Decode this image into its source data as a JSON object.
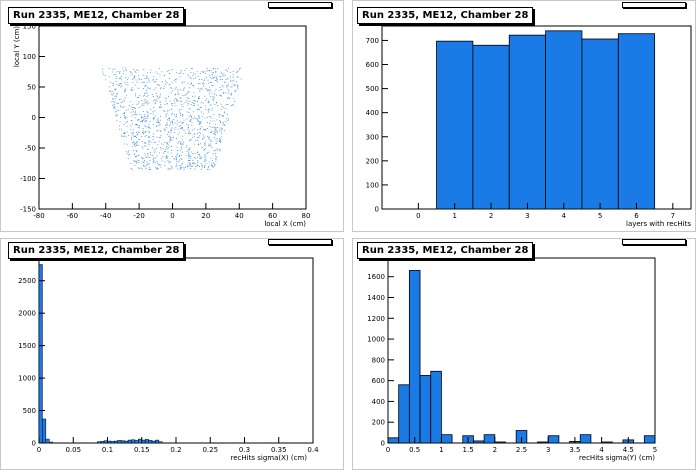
{
  "chart_data": [
    {
      "type": "scatter",
      "title": "Run 2335, ME12, Chamber 28",
      "xlabel": "local X (cm)",
      "ylabel": "local Y (cm)",
      "xlim": [
        -80,
        80
      ],
      "ylim": [
        -150,
        150
      ],
      "xticks": [
        -80,
        -60,
        -40,
        -20,
        0,
        20,
        40,
        60,
        80
      ],
      "yticks": [
        -150,
        -100,
        -50,
        0,
        50,
        100,
        150
      ],
      "region": {
        "y_top": 82,
        "y_bottom": -85,
        "x_top_half_width": 43,
        "x_bottom_half_width": 25,
        "x_center": 0
      },
      "color": "#3f8fd6"
    },
    {
      "type": "bar",
      "title": "Run 2335, ME12, Chamber 28",
      "xlabel": "layers with recHits",
      "ylabel": "",
      "xlim": [
        -1,
        7.5
      ],
      "ylim": [
        0,
        760
      ],
      "xticks": [
        0,
        1,
        2,
        3,
        4,
        5,
        6,
        7
      ],
      "yticks": [
        0,
        100,
        200,
        300,
        400,
        500,
        600,
        700
      ],
      "bin_edges": [
        0.5,
        1.5,
        2.5,
        3.5,
        4.5,
        5.5,
        6.5
      ],
      "values": [
        697,
        680,
        722,
        740,
        706,
        728
      ],
      "color": "#1a7ae6"
    },
    {
      "type": "bar",
      "title": "Run 2335, ME12, Chamber 28",
      "xlabel": "recHits sigma(X) (cm)",
      "ylabel": "",
      "xlim": [
        0,
        0.4
      ],
      "ylim": [
        0,
        2850
      ],
      "xticks": [
        0,
        0.05,
        0.1,
        0.15,
        0.2,
        0.25,
        0.3,
        0.35,
        0.4
      ],
      "xtick_labels": [
        "0",
        "0.05",
        "0.1",
        "0.15",
        "0.2",
        "0.25",
        "0.3",
        "0.35",
        "0.4"
      ],
      "yticks": [
        0,
        500,
        1000,
        1500,
        2000,
        2500
      ],
      "bin_width": 0.005,
      "bins": [
        {
          "x": 0.0,
          "v": 2750
        },
        {
          "x": 0.005,
          "v": 370
        },
        {
          "x": 0.01,
          "v": 60
        },
        {
          "x": 0.015,
          "v": 15
        },
        {
          "x": 0.085,
          "v": 20
        },
        {
          "x": 0.09,
          "v": 25
        },
        {
          "x": 0.095,
          "v": 35
        },
        {
          "x": 0.1,
          "v": 30
        },
        {
          "x": 0.105,
          "v": 25
        },
        {
          "x": 0.11,
          "v": 30
        },
        {
          "x": 0.115,
          "v": 40
        },
        {
          "x": 0.12,
          "v": 35
        },
        {
          "x": 0.125,
          "v": 30
        },
        {
          "x": 0.13,
          "v": 45
        },
        {
          "x": 0.135,
          "v": 50
        },
        {
          "x": 0.14,
          "v": 40
        },
        {
          "x": 0.145,
          "v": 60
        },
        {
          "x": 0.15,
          "v": 45
        },
        {
          "x": 0.155,
          "v": 55
        },
        {
          "x": 0.16,
          "v": 40
        },
        {
          "x": 0.165,
          "v": 30
        },
        {
          "x": 0.17,
          "v": 45
        },
        {
          "x": 0.175,
          "v": 20
        }
      ],
      "color": "#1a7ae6"
    },
    {
      "type": "bar",
      "title": "Run 2335, ME12, Chamber 28",
      "xlabel": "recHits sigma(Y) (cm)",
      "ylabel": "",
      "xlim": [
        0,
        5
      ],
      "ylim": [
        0,
        1780
      ],
      "xticks": [
        0,
        0.5,
        1,
        1.5,
        2,
        2.5,
        3,
        3.5,
        4,
        4.5,
        5
      ],
      "xtick_labels": [
        "0",
        "0.5",
        "1",
        "1.5",
        "2",
        "2.5",
        "3",
        "3.5",
        "4",
        "4.5",
        "5"
      ],
      "yticks": [
        0,
        200,
        400,
        600,
        800,
        1000,
        1200,
        1400,
        1600
      ],
      "bin_width": 0.2,
      "bins": [
        {
          "x": 0.0,
          "v": 50
        },
        {
          "x": 0.2,
          "v": 560
        },
        {
          "x": 0.4,
          "v": 1660
        },
        {
          "x": 0.6,
          "v": 650
        },
        {
          "x": 0.8,
          "v": 690
        },
        {
          "x": 1.0,
          "v": 80
        },
        {
          "x": 1.4,
          "v": 70
        },
        {
          "x": 1.6,
          "v": 20
        },
        {
          "x": 1.8,
          "v": 80
        },
        {
          "x": 2.0,
          "v": 10
        },
        {
          "x": 2.4,
          "v": 120
        },
        {
          "x": 2.8,
          "v": 10
        },
        {
          "x": 3.0,
          "v": 70
        },
        {
          "x": 3.4,
          "v": 15
        },
        {
          "x": 3.6,
          "v": 80
        },
        {
          "x": 4.0,
          "v": 10
        },
        {
          "x": 4.4,
          "v": 30
        },
        {
          "x": 4.8,
          "v": 70
        }
      ],
      "color": "#1a7ae6"
    }
  ]
}
